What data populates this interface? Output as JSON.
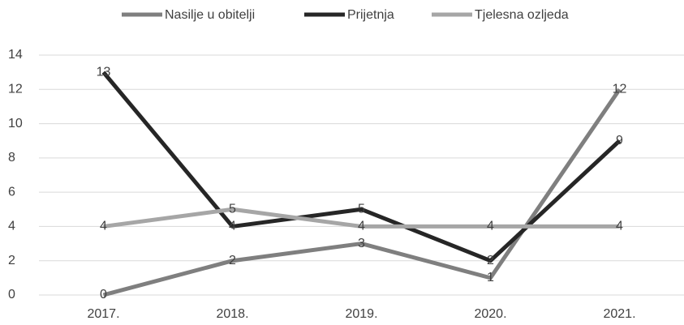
{
  "chart_data": {
    "type": "line",
    "categories": [
      "2017.",
      "2018.",
      "2019.",
      "2020.",
      "2021."
    ],
    "series": [
      {
        "name": "Nasilje u obitelji",
        "color": "#7f7f7f",
        "values": [
          0,
          2,
          3,
          1,
          12
        ]
      },
      {
        "name": "Prijetnja",
        "color": "#262626",
        "values": [
          13,
          4,
          5,
          2,
          9
        ]
      },
      {
        "name": "Tjelesna ozljeda",
        "color": "#a6a6a6",
        "values": [
          4,
          5,
          4,
          4,
          4
        ]
      }
    ],
    "ylim": [
      0,
      14
    ],
    "yticks": [
      0,
      2,
      4,
      6,
      8,
      10,
      12,
      14
    ],
    "grid": true,
    "legend": "top",
    "data_labels": true
  }
}
